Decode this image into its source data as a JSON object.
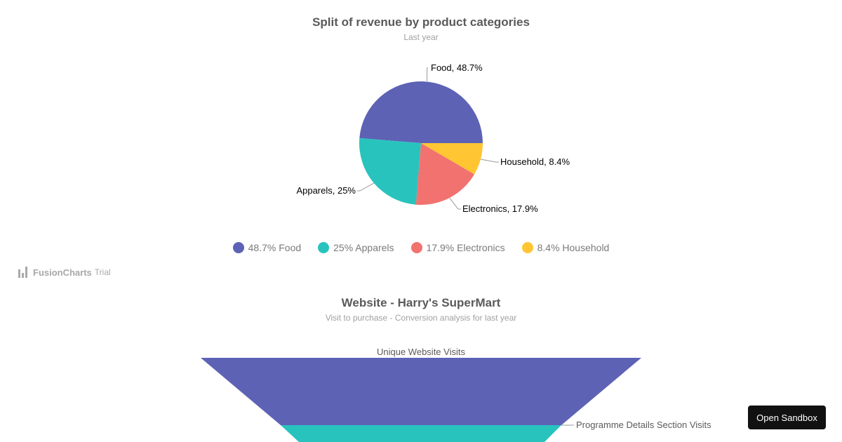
{
  "pie_chart": {
    "title": "Split of revenue by product categories",
    "subtitle": "Last year"
  },
  "funnel_chart": {
    "title": "Website - Harry's SuperMart",
    "subtitle": "Visit to purchase - Conversion analysis for last year"
  },
  "watermark": {
    "brand": "FusionCharts",
    "suffix": "Trial"
  },
  "sandbox_button": {
    "label": "Open Sandbox"
  },
  "legend": [
    {
      "label": "48.7% Food",
      "color": "#5d62b5"
    },
    {
      "label": "25% Apparels",
      "color": "#29c3be"
    },
    {
      "label": "17.9% Electronics",
      "color": "#f2726f"
    },
    {
      "label": "8.4% Household",
      "color": "#ffc533"
    }
  ],
  "chart_data": [
    {
      "type": "pie",
      "title": "Split of revenue by product categories",
      "subtitle": "Last year",
      "legend_position": "bottom",
      "categories": [
        "Food",
        "Apparels",
        "Electronics",
        "Household"
      ],
      "values": [
        48.7,
        25,
        17.9,
        8.4
      ],
      "colors": [
        "#5d62b5",
        "#29c3be",
        "#f2726f",
        "#ffc533"
      ],
      "data_labels": [
        "Food, 48.7%",
        "Apparels, 25%",
        "Electronics, 17.9%",
        "Household, 8.4%"
      ]
    },
    {
      "type": "funnel",
      "title": "Website - Harry's SuperMart",
      "subtitle": "Visit to purchase - Conversion analysis for last year",
      "stages": [
        "Unique Website Visits",
        "Programme Details Section Visits"
      ],
      "colors": [
        "#5d62b5",
        "#29c3be"
      ]
    }
  ]
}
